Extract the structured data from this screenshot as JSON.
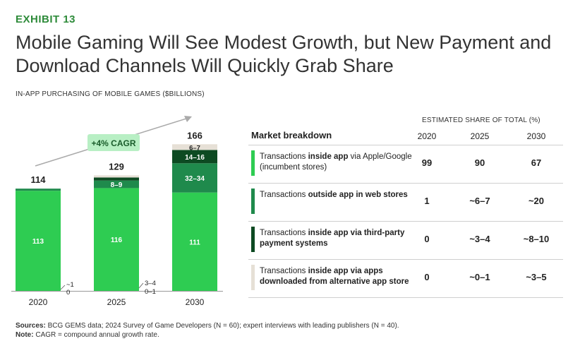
{
  "exhibit": "EXHIBIT 13",
  "title_line1": "Mobile Gaming Will See Modest Growth, but New Payment and",
  "title_line2": "Download Channels Will Quickly Grab Share",
  "subtitle": "IN-APP PURCHASING OF MOBILE GAMES ($BILLIONS)",
  "colors": {
    "incumbent": "#2ecc52",
    "web": "#1f8a4c",
    "thirdparty": "#0d4a22",
    "altstore": "#e6e0d6",
    "accent": "#2e8b3a"
  },
  "chart_data": {
    "type": "bar",
    "stacked": true,
    "title": "IN-APP PURCHASING OF MOBILE GAMES ($BILLIONS)",
    "categories": [
      "2020",
      "2025",
      "2030"
    ],
    "totals": [
      114,
      129,
      166
    ],
    "total_labels": [
      "114",
      "129",
      "166"
    ],
    "cagr_label": "+4% CAGR",
    "series": [
      {
        "name": "Transactions inside app via Apple/Google (incumbent stores)",
        "values": [
          113,
          116,
          111
        ],
        "labels": [
          "113",
          "116",
          "111"
        ]
      },
      {
        "name": "Transactions outside app in web stores",
        "values": [
          1,
          8.5,
          33
        ],
        "labels": [
          "~1",
          "8–9",
          "32–34"
        ]
      },
      {
        "name": "Transactions inside app via third-party payment systems",
        "values": [
          0,
          3.5,
          15
        ],
        "labels": [
          "0",
          "3–4",
          "14–16"
        ]
      },
      {
        "name": "Transactions inside app via apps downloaded from alternative app store",
        "values": [
          0,
          0.5,
          6.5
        ],
        "labels": [
          "",
          "0–1",
          "6–7"
        ]
      }
    ]
  },
  "table": {
    "est_header": "ESTIMATED SHARE OF TOTAL (%)",
    "breakdown_header": "Market breakdown",
    "years": [
      "2020",
      "2025",
      "2030"
    ],
    "rows": [
      {
        "label_pre": "Transactions ",
        "label_bold": "inside app",
        "label_post": " via Apple/Google (incumbent stores)",
        "values": [
          "99",
          "90",
          "67"
        ]
      },
      {
        "label_pre": "Transactions ",
        "label_bold": "outside app in web stores",
        "label_post": "",
        "values": [
          "1",
          "~6–7",
          "~20"
        ]
      },
      {
        "label_pre": "Transactions ",
        "label_bold": "inside app via third-party payment systems",
        "label_post": "",
        "values": [
          "0",
          "~3–4",
          "~8–10"
        ]
      },
      {
        "label_pre": "Transactions ",
        "label_bold": "inside app via apps downloaded from alternative app store",
        "label_post": "",
        "values": [
          "0",
          "~0–1",
          "~3–5"
        ]
      }
    ]
  },
  "sources_label": "Sources:",
  "sources_text": " BCG GEMS data; 2024 Survey of Game Developers (N = 60); expert interviews with leading publishers (N = 40).",
  "note_label": "Note:",
  "note_text": " CAGR = compound annual growth rate."
}
